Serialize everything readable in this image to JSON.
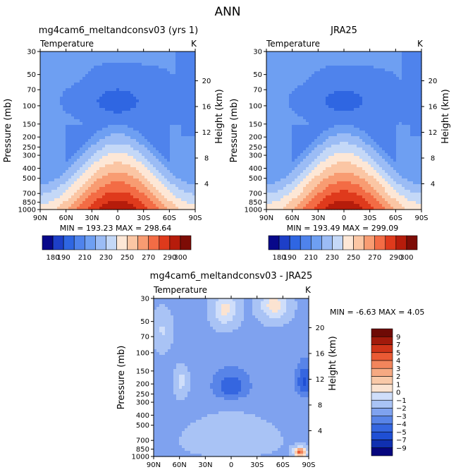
{
  "main_title": "ANN",
  "chart_data": [
    {
      "type": "heatmap",
      "id": "model",
      "title": "mg4cam6_meltandconsv03 (yrs 1)",
      "left_label": "Temperature",
      "right_label": "K",
      "ylabel": "Pressure (mb)",
      "ylabel_right": "Height (km)",
      "x_ticks": [
        "90N",
        "60N",
        "30N",
        "0",
        "30S",
        "60S",
        "90S"
      ],
      "x_range": [
        90,
        -90
      ],
      "p_ticks": [
        "30",
        "50",
        "70",
        "100",
        "150",
        "200",
        "250",
        "300",
        "400",
        "500",
        "700",
        "850",
        "1000"
      ],
      "p_range": [
        30,
        1000
      ],
      "h_ticks": [
        "20",
        "16",
        "12",
        "8",
        "4"
      ],
      "stats": "MIN = 193.23   MAX = 298.64",
      "min": 193.23,
      "max": 298.64,
      "shift": 0
    },
    {
      "type": "heatmap",
      "id": "obs",
      "title": "JRA25",
      "left_label": "Temperature",
      "right_label": "K",
      "ylabel": "Pressure (mb)",
      "ylabel_right": "Height (km)",
      "x_ticks": [
        "90N",
        "60N",
        "30N",
        "0",
        "30S",
        "60S",
        "90S"
      ],
      "x_range": [
        90,
        -90
      ],
      "p_ticks": [
        "30",
        "50",
        "70",
        "100",
        "150",
        "200",
        "250",
        "300",
        "400",
        "500",
        "700",
        "850",
        "1000"
      ],
      "p_range": [
        30,
        1000
      ],
      "h_ticks": [
        "20",
        "16",
        "12",
        "8",
        "4"
      ],
      "stats": "MIN = 193.49   MAX = 299.09",
      "min": 193.49,
      "max": 299.09,
      "shift": 0.3
    },
    {
      "type": "heatmap",
      "id": "diff",
      "title": "mg4cam6_meltandconsv03 - JRA25",
      "left_label": "Temperature",
      "right_label": "K",
      "ylabel": "Pressure (mb)",
      "ylabel_right": "Height (km)",
      "x_ticks": [
        "90N",
        "60N",
        "30N",
        "0",
        "30S",
        "60S",
        "90S"
      ],
      "x_range": [
        90,
        -90
      ],
      "p_ticks": [
        "30",
        "50",
        "70",
        "100",
        "150",
        "200",
        "250",
        "300",
        "400",
        "500",
        "700",
        "850",
        "1000"
      ],
      "p_range": [
        30,
        1000
      ],
      "h_ticks": [
        "20",
        "16",
        "12",
        "8",
        "4"
      ],
      "stats": "MIN =   -6.63   MAX =    4.05",
      "min": -6.63,
      "max": 4.05
    }
  ],
  "colorbar_abs": {
    "levels": [
      180,
      190,
      200,
      210,
      220,
      230,
      240,
      250,
      260,
      270,
      280,
      290,
      300
    ],
    "labels": [
      "180",
      "190",
      "210",
      "230",
      "250",
      "270",
      "290",
      "300"
    ],
    "label_values": [
      180,
      190,
      210,
      230,
      250,
      270,
      290,
      300
    ],
    "colors": [
      "#08088a",
      "#1d3fc8",
      "#2f66e2",
      "#4f83ec",
      "#6e9ff2",
      "#9bbcf5",
      "#c4d8f7",
      "#fde7d6",
      "#fbc6a4",
      "#f89c72",
      "#f36c45",
      "#df3a1c",
      "#b61c0b",
      "#7d0c06"
    ]
  },
  "colorbar_diff": {
    "levels": [
      -9,
      -7,
      -5,
      -4,
      -3,
      -2,
      -1,
      0,
      1,
      2,
      3,
      4,
      5,
      7,
      9
    ],
    "labels": [
      "9",
      "7",
      "5",
      "4",
      "3",
      "2",
      "1",
      "0",
      "−1",
      "−2",
      "−3",
      "−4",
      "−5",
      "−7",
      "−9"
    ],
    "colors": [
      "#06067e",
      "#1030b0",
      "#1f4fd4",
      "#3566e0",
      "#5884e8",
      "#7fa2ef",
      "#a9c3f5",
      "#cfdefa",
      "#fbe3d1",
      "#f9c9a8",
      "#f6a982",
      "#f2855c",
      "#ea5a34",
      "#cf3418",
      "#a11a0b",
      "#6e0a05"
    ]
  }
}
